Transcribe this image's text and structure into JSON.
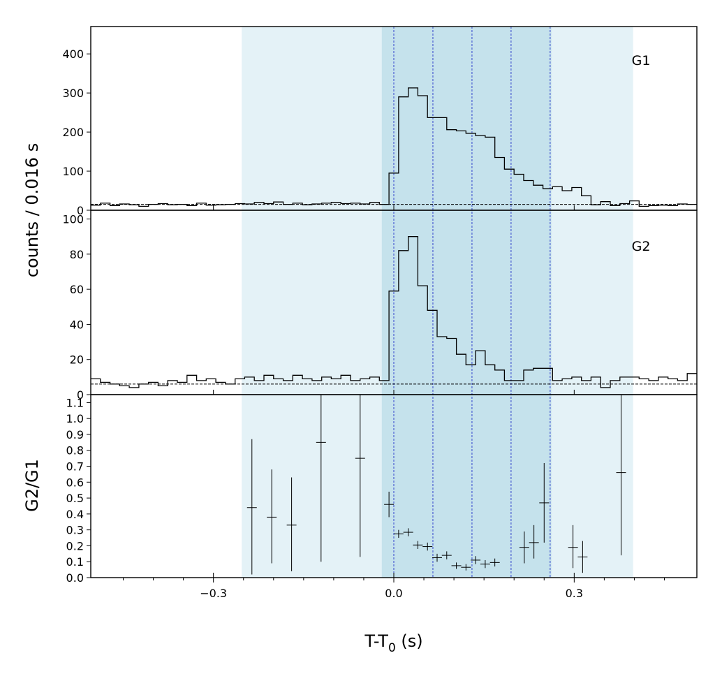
{
  "chart_data": [
    {
      "type": "step",
      "panel": "top",
      "label": "G1",
      "ylim": [
        0,
        470
      ],
      "yticks": [
        0,
        100,
        200,
        300,
        400
      ],
      "ytick_labels": [
        "0",
        "100",
        "200",
        "300",
        "400"
      ],
      "bin_width": 0.016,
      "bin_edges": [
        -0.504,
        -0.488,
        -0.472,
        -0.456,
        -0.44,
        -0.424,
        -0.408,
        -0.392,
        -0.376,
        -0.36,
        -0.344,
        -0.328,
        -0.312,
        -0.296,
        -0.28,
        -0.264,
        -0.248,
        -0.232,
        -0.216,
        -0.2,
        -0.184,
        -0.168,
        -0.152,
        -0.136,
        -0.12,
        -0.104,
        -0.088,
        -0.072,
        -0.056,
        -0.04,
        -0.024,
        -0.008,
        0.008,
        0.024,
        0.04,
        0.056,
        0.072,
        0.088,
        0.104,
        0.12,
        0.136,
        0.152,
        0.168,
        0.184,
        0.2,
        0.216,
        0.232,
        0.248,
        0.264,
        0.28,
        0.296,
        0.312,
        0.328,
        0.344,
        0.36,
        0.376,
        0.392,
        0.408,
        0.424,
        0.44,
        0.456,
        0.472,
        0.488,
        0.504
      ],
      "counts": [
        13,
        18,
        12,
        16,
        14,
        10,
        15,
        17,
        14,
        15,
        12,
        18,
        13,
        14,
        15,
        17,
        16,
        20,
        17,
        21,
        15,
        18,
        14,
        16,
        18,
        20,
        17,
        18,
        16,
        20,
        15,
        95,
        290,
        313,
        293,
        237,
        237,
        206,
        203,
        197,
        191,
        187,
        135,
        105,
        92,
        76,
        64,
        55,
        60,
        50,
        58,
        37,
        14,
        22,
        12,
        17,
        24,
        10,
        12,
        13,
        12,
        16,
        15
      ],
      "background_level": 15
    },
    {
      "type": "step",
      "panel": "middle",
      "label": "G2",
      "ylim": [
        0,
        105
      ],
      "yticks": [
        0,
        20,
        40,
        60,
        80,
        100
      ],
      "ytick_labels": [
        "0",
        "20",
        "40",
        "60",
        "80",
        "100"
      ],
      "counts": [
        9,
        7,
        6,
        5,
        4,
        6,
        7,
        5,
        8,
        7,
        11,
        8,
        9,
        7,
        6,
        9,
        10,
        8,
        11,
        9,
        8,
        11,
        9,
        8,
        10,
        9,
        11,
        8,
        9,
        10,
        8,
        59,
        82,
        90,
        62,
        48,
        33,
        32,
        23,
        17,
        25,
        17,
        14,
        8,
        8,
        14,
        15,
        15,
        8,
        9,
        10,
        8,
        10,
        4,
        8,
        10,
        10,
        9,
        8,
        10,
        9,
        8,
        12
      ],
      "background_level": 6
    },
    {
      "type": "errorbar",
      "panel": "bottom",
      "ylabel": "G2/G1",
      "ylim": [
        0,
        1.15
      ],
      "yticks": [
        0,
        0.1,
        0.2,
        0.3,
        0.4,
        0.5,
        0.6,
        0.7,
        0.8,
        0.9,
        1.0,
        1.1
      ],
      "ytick_labels": [
        "0.0",
        "0.1",
        "0.2",
        "0.3",
        "0.4",
        "0.5",
        "0.6",
        "0.7",
        "0.8",
        "0.9",
        "1.0",
        "1.1"
      ],
      "points": [
        {
          "x": -0.236,
          "y": 0.44,
          "ylo": 0.02,
          "yhi": 0.87
        },
        {
          "x": -0.203,
          "y": 0.38,
          "ylo": 0.09,
          "yhi": 0.68
        },
        {
          "x": -0.17,
          "y": 0.33,
          "ylo": 0.04,
          "yhi": 0.63
        },
        {
          "x": -0.121,
          "y": 0.85,
          "ylo": 0.1,
          "yhi": 1.15
        },
        {
          "x": -0.056,
          "y": 0.75,
          "ylo": 0.13,
          "yhi": 1.15
        },
        {
          "x": -0.008,
          "y": 0.46,
          "ylo": 0.38,
          "yhi": 0.54
        },
        {
          "x": 0.008,
          "y": 0.275,
          "ylo": 0.25,
          "yhi": 0.3
        },
        {
          "x": 0.024,
          "y": 0.285,
          "ylo": 0.26,
          "yhi": 0.31
        },
        {
          "x": 0.04,
          "y": 0.205,
          "ylo": 0.18,
          "yhi": 0.23
        },
        {
          "x": 0.056,
          "y": 0.195,
          "ylo": 0.17,
          "yhi": 0.22
        },
        {
          "x": 0.072,
          "y": 0.125,
          "ylo": 0.1,
          "yhi": 0.15
        },
        {
          "x": 0.088,
          "y": 0.14,
          "ylo": 0.115,
          "yhi": 0.165
        },
        {
          "x": 0.104,
          "y": 0.075,
          "ylo": 0.055,
          "yhi": 0.095
        },
        {
          "x": 0.12,
          "y": 0.065,
          "ylo": 0.045,
          "yhi": 0.085
        },
        {
          "x": 0.136,
          "y": 0.11,
          "ylo": 0.085,
          "yhi": 0.135
        },
        {
          "x": 0.152,
          "y": 0.085,
          "ylo": 0.06,
          "yhi": 0.11
        },
        {
          "x": 0.168,
          "y": 0.095,
          "ylo": 0.07,
          "yhi": 0.12
        },
        {
          "x": 0.217,
          "y": 0.19,
          "ylo": 0.09,
          "yhi": 0.29
        },
        {
          "x": 0.233,
          "y": 0.22,
          "ylo": 0.12,
          "yhi": 0.33
        },
        {
          "x": 0.25,
          "y": 0.47,
          "ylo": 0.22,
          "yhi": 0.72
        },
        {
          "x": 0.298,
          "y": 0.19,
          "ylo": 0.06,
          "yhi": 0.33
        },
        {
          "x": 0.314,
          "y": 0.13,
          "ylo": 0.03,
          "yhi": 0.23
        },
        {
          "x": 0.378,
          "y": 0.66,
          "ylo": 0.14,
          "yhi": 1.15
        }
      ]
    }
  ],
  "shared": {
    "xlim": [
      -0.504,
      0.504
    ],
    "xticks": [
      -0.3,
      0.0,
      0.3
    ],
    "xtick_labels": [
      "−0.3",
      "0.0",
      "0.3"
    ],
    "xminor_ticks": [
      -0.45,
      -0.4,
      -0.35,
      -0.25,
      -0.2,
      -0.15,
      -0.1,
      -0.05,
      0.05,
      0.1,
      0.15,
      0.2,
      0.25,
      0.35,
      0.4,
      0.45
    ],
    "xlabel_main": "T-T",
    "xlabel_sub": "0",
    "xlabel_tail": " (s)",
    "ylabel_counts": "counts /  0.016 s",
    "light_band": [
      -0.253,
      0.398
    ],
    "dark_band": [
      -0.02,
      0.262
    ],
    "dashed_lines": [
      0.0,
      0.065,
      0.13,
      0.195,
      0.26
    ],
    "colors": {
      "light_band": "#e4f2f7",
      "dark_band": "#c5e2ec",
      "dashed": "#3344cc",
      "line": "#000000"
    }
  }
}
